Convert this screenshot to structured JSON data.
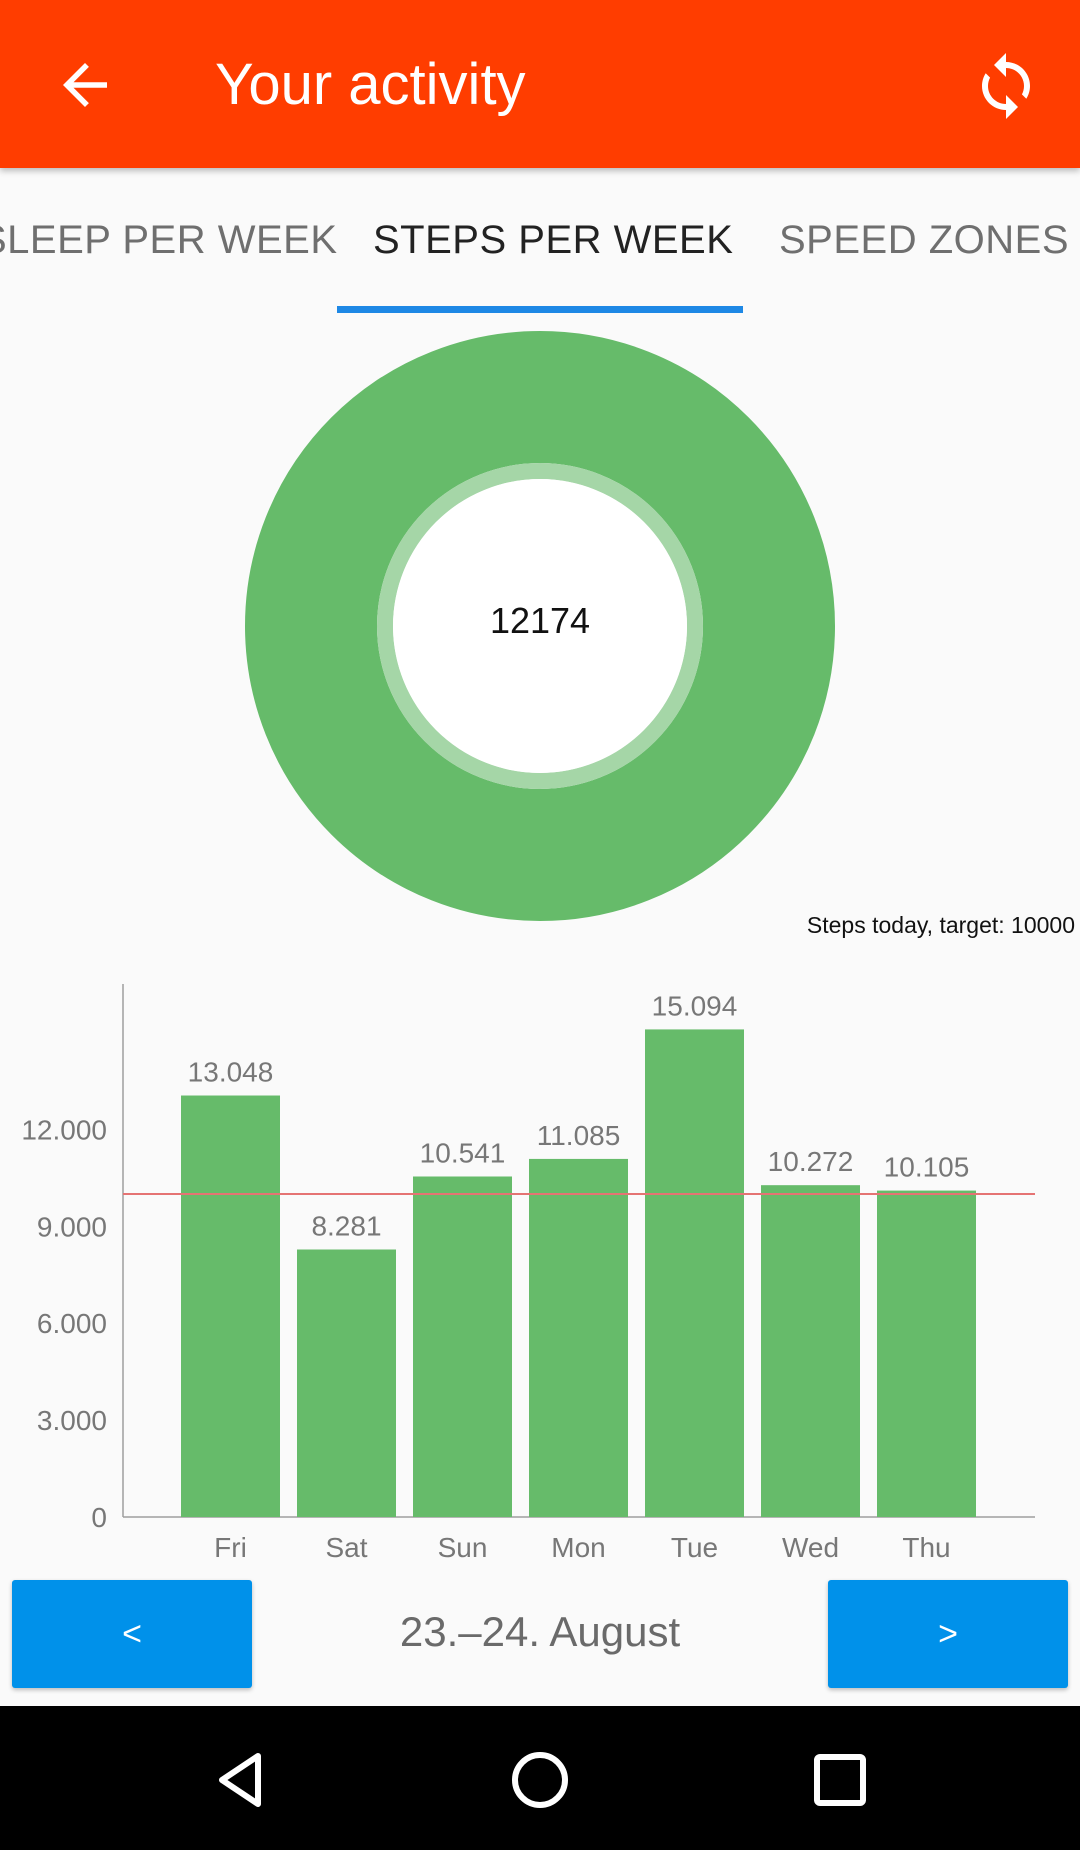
{
  "appbar": {
    "title": "Your activity",
    "back_icon": "arrow-left-icon",
    "sync_icon": "sync-icon",
    "color": "#ff3d00"
  },
  "tabs": [
    {
      "label": "SLEEP PER WEEK",
      "active": false
    },
    {
      "label": "STEPS PER WEEK",
      "active": true
    },
    {
      "label": "SPEED ZONES",
      "active": false
    }
  ],
  "donut": {
    "value": "12174",
    "caption": "Steps today, target: 10000",
    "steps_today": 12174,
    "target": 10000,
    "color": "#66bb6a"
  },
  "chart_data": {
    "type": "bar",
    "categories": [
      "Fri",
      "Sat",
      "Sun",
      "Mon",
      "Tue",
      "Wed",
      "Thu"
    ],
    "values": [
      13048,
      8281,
      10541,
      11085,
      15094,
      10272,
      10105
    ],
    "value_labels": [
      "13.048",
      "8.281",
      "10.541",
      "11.085",
      "15.094",
      "10.272",
      "10.105"
    ],
    "yticks": [
      0,
      3000,
      6000,
      9000,
      12000
    ],
    "ytick_labels": [
      "0",
      "3.000",
      "6.000",
      "9.000",
      "12.000"
    ],
    "ylim": [
      0,
      16500
    ],
    "target_line": 10000,
    "bar_color": "#66bb6a",
    "target_color": "#e57373",
    "title": "",
    "xlabel": "",
    "ylabel": ""
  },
  "navigation": {
    "prev_label": "<",
    "next_label": ">",
    "date_range": "23.–24. August"
  },
  "system_nav": {
    "back_icon": "triangle-back-icon",
    "home_icon": "circle-home-icon",
    "recents_icon": "square-recents-icon"
  }
}
